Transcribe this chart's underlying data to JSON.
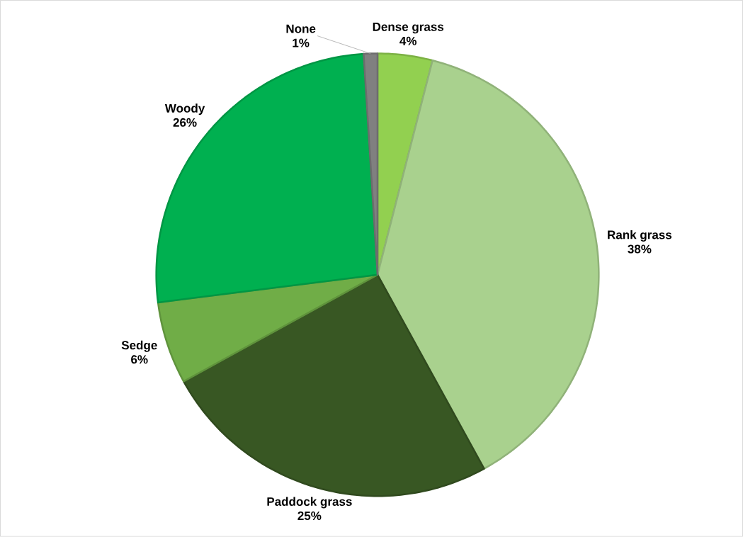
{
  "chart_data": {
    "type": "pie",
    "categories": [
      "Dense grass",
      "Rank grass",
      "Paddock grass",
      "Sedge",
      "Woody",
      "None"
    ],
    "values": [
      4,
      38,
      25,
      6,
      26,
      1
    ],
    "value_labels": [
      "4%",
      "38%",
      "25%",
      "6%",
      "26%",
      "1%"
    ],
    "colors": [
      "#92d050",
      "#a9d18e",
      "#385723",
      "#70ad47",
      "#00b050",
      "#808080"
    ]
  }
}
